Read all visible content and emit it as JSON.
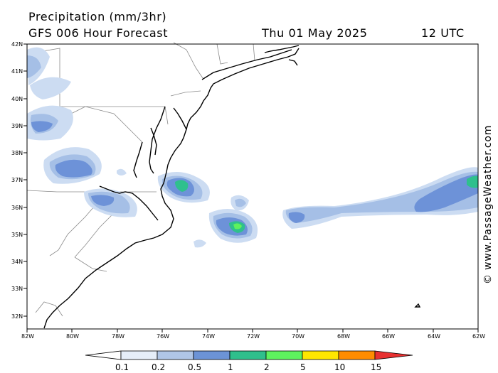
{
  "header": {
    "title": "Precipitation (mm/3hr)",
    "subtitle": "GFS 006 Hour Forecast",
    "date": "Thu 01 May 2025",
    "time": "12 UTC"
  },
  "watermark": "© www.PassageWeather.com",
  "axes": {
    "lat_labels": [
      "42N",
      "41N",
      "40N",
      "39N",
      "38N",
      "37N",
      "36N",
      "35N",
      "34N",
      "33N",
      "32N"
    ],
    "lon_labels": [
      "82W",
      "80W",
      "78W",
      "76W",
      "74W",
      "72W",
      "70W",
      "68W",
      "66W",
      "64W",
      "62W"
    ]
  },
  "colorbar": {
    "labels": [
      "0.1",
      "0.2",
      "0.5",
      "1",
      "2",
      "5",
      "10",
      "15"
    ],
    "colors": [
      "#e6eef8",
      "#b0c6e6",
      "#6c93d6",
      "#2fbf8c",
      "#5ef25e",
      "#ffe600",
      "#ff8c00",
      "#e83030"
    ]
  },
  "colors": {
    "light": "#ccdcf2",
    "mid": "#a5bfe6",
    "blue": "#6d92d8",
    "teal": "#2fc08d",
    "green": "#5ef25e",
    "land_border": "#8a8a8a"
  }
}
